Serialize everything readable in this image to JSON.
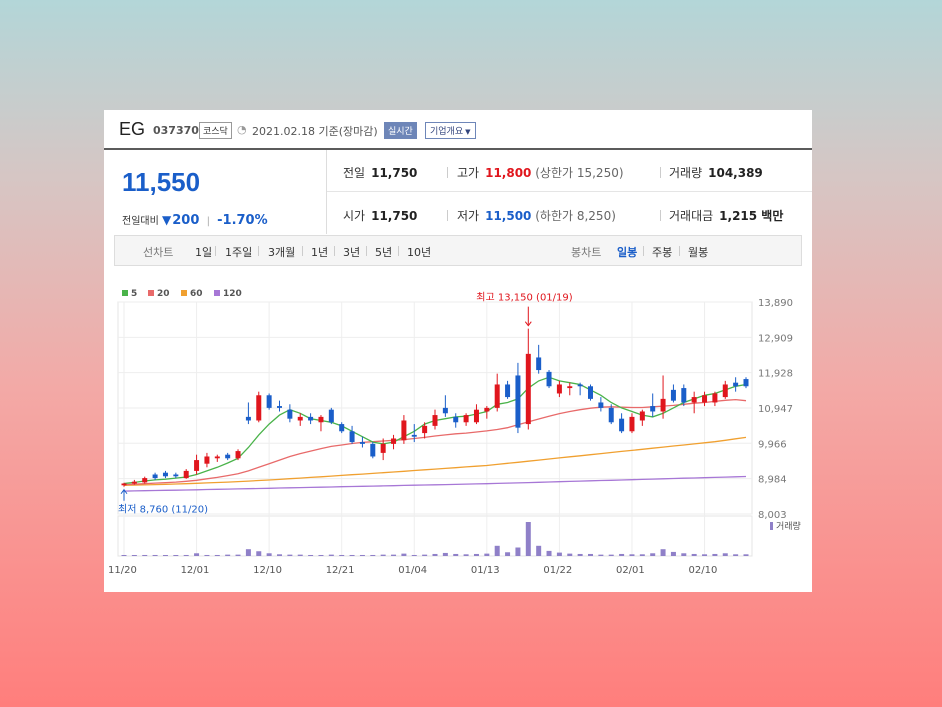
{
  "stock": {
    "name": "EG",
    "code": "037370",
    "market": "코스닥",
    "date_text": "2021.02.18 기준(장마감)",
    "realtime_label": "실시간",
    "company_label": "기업개요",
    "price": "11,550",
    "change_label": "전일대비",
    "change_value": "200",
    "change_pct": "-1.70%"
  },
  "summary": {
    "prev_label": "전일",
    "prev_value": "11,750",
    "high_label": "고가",
    "high_value": "11,800",
    "high_sub": "(상한가 15,250)",
    "volume_label": "거래량",
    "volume_value": "104,389",
    "open_label": "시가",
    "open_value": "11,750",
    "low_label": "저가",
    "low_value": "11,500",
    "low_sub": "(하한가 8,250)",
    "amount_label": "거래대금",
    "amount_value": "1,215 백만"
  },
  "tabs": {
    "line_label": "선차트",
    "line_items": [
      "1일",
      "1주일",
      "3개월",
      "1년",
      "3년",
      "5년",
      "10년"
    ],
    "candle_label": "봉차트",
    "candle_items": [
      "일봉",
      "주봉",
      "월봉"
    ],
    "candle_active": "일봉"
  },
  "colors": {
    "up": "#e0161d",
    "down": "#1a5ec9",
    "ma5": "#4ab34a",
    "ma20": "#e86a6a",
    "ma60": "#f0a030",
    "ma120": "#a777d6",
    "volume": "#8f80c8"
  },
  "chart_data": {
    "type": "candlestick",
    "legend": [
      "5",
      "20",
      "60",
      "120"
    ],
    "y_ticks": [
      "13,890",
      "12,909",
      "11,928",
      "10,947",
      "9,966",
      "8,984",
      "8,003"
    ],
    "ylim": [
      8003,
      13890
    ],
    "x_tick_labels": [
      {
        "i": 0,
        "label": "11/20"
      },
      {
        "i": 7,
        "label": "12/01"
      },
      {
        "i": 14,
        "label": "12/10"
      },
      {
        "i": 21,
        "label": "12/21"
      },
      {
        "i": 28,
        "label": "01/04"
      },
      {
        "i": 35,
        "label": "01/13"
      },
      {
        "i": 42,
        "label": "01/22"
      },
      {
        "i": 49,
        "label": "02/01"
      },
      {
        "i": 56,
        "label": "02/10"
      }
    ],
    "annotations": {
      "high": {
        "text": "최고 13,150 (01/19)",
        "index": 39,
        "value": 13150
      },
      "low": {
        "text": "최저 8,760 (11/20)",
        "index": 0,
        "value": 8760
      }
    },
    "volume_label": "거래량",
    "candles": [
      {
        "o": 8800,
        "h": 8870,
        "l": 8760,
        "c": 8850
      },
      {
        "o": 8850,
        "h": 8950,
        "l": 8820,
        "c": 8900
      },
      {
        "o": 8880,
        "h": 9040,
        "l": 8850,
        "c": 9000
      },
      {
        "o": 9100,
        "h": 9150,
        "l": 8950,
        "c": 9000
      },
      {
        "o": 9150,
        "h": 9200,
        "l": 9000,
        "c": 9050
      },
      {
        "o": 9100,
        "h": 9150,
        "l": 9000,
        "c": 9050
      },
      {
        "o": 9000,
        "h": 9250,
        "l": 8980,
        "c": 9200
      },
      {
        "o": 9200,
        "h": 9650,
        "l": 9100,
        "c": 9500
      },
      {
        "o": 9400,
        "h": 9700,
        "l": 9300,
        "c": 9600
      },
      {
        "o": 9550,
        "h": 9650,
        "l": 9450,
        "c": 9600
      },
      {
        "o": 9650,
        "h": 9700,
        "l": 9500,
        "c": 9550
      },
      {
        "o": 9550,
        "h": 9800,
        "l": 9500,
        "c": 9750
      },
      {
        "o": 10700,
        "h": 11100,
        "l": 10500,
        "c": 10600
      },
      {
        "o": 10600,
        "h": 11400,
        "l": 10550,
        "c": 11300
      },
      {
        "o": 11300,
        "h": 11350,
        "l": 10900,
        "c": 10950
      },
      {
        "o": 11000,
        "h": 11150,
        "l": 10850,
        "c": 10950
      },
      {
        "o": 10900,
        "h": 11050,
        "l": 10550,
        "c": 10650
      },
      {
        "o": 10600,
        "h": 10800,
        "l": 10450,
        "c": 10700
      },
      {
        "o": 10700,
        "h": 10800,
        "l": 10500,
        "c": 10600
      },
      {
        "o": 10550,
        "h": 10750,
        "l": 10300,
        "c": 10700
      },
      {
        "o": 10900,
        "h": 10950,
        "l": 10500,
        "c": 10550
      },
      {
        "o": 10500,
        "h": 10550,
        "l": 10250,
        "c": 10300
      },
      {
        "o": 10300,
        "h": 10450,
        "l": 9950,
        "c": 10000
      },
      {
        "o": 10000,
        "h": 10150,
        "l": 9850,
        "c": 9950
      },
      {
        "o": 9950,
        "h": 10000,
        "l": 9550,
        "c": 9600
      },
      {
        "o": 9700,
        "h": 10100,
        "l": 9500,
        "c": 9950
      },
      {
        "o": 9950,
        "h": 10200,
        "l": 9800,
        "c": 10100
      },
      {
        "o": 10050,
        "h": 10750,
        "l": 9950,
        "c": 10600
      },
      {
        "o": 10200,
        "h": 10500,
        "l": 10000,
        "c": 10150
      },
      {
        "o": 10250,
        "h": 10550,
        "l": 10100,
        "c": 10450
      },
      {
        "o": 10450,
        "h": 10900,
        "l": 10350,
        "c": 10750
      },
      {
        "o": 10950,
        "h": 11300,
        "l": 10700,
        "c": 10800
      },
      {
        "o": 10700,
        "h": 10800,
        "l": 10400,
        "c": 10550
      },
      {
        "o": 10550,
        "h": 10800,
        "l": 10450,
        "c": 10750
      },
      {
        "o": 10550,
        "h": 11050,
        "l": 10500,
        "c": 10900
      },
      {
        "o": 10850,
        "h": 11000,
        "l": 10650,
        "c": 10950
      },
      {
        "o": 10950,
        "h": 11900,
        "l": 10850,
        "c": 11600
      },
      {
        "o": 11600,
        "h": 11700,
        "l": 11200,
        "c": 11250
      },
      {
        "o": 11850,
        "h": 12200,
        "l": 10250,
        "c": 10400
      },
      {
        "o": 10500,
        "h": 13150,
        "l": 10350,
        "c": 12450
      },
      {
        "o": 12350,
        "h": 12700,
        "l": 11900,
        "c": 12000
      },
      {
        "o": 11950,
        "h": 12000,
        "l": 11500,
        "c": 11550
      },
      {
        "o": 11350,
        "h": 11700,
        "l": 11250,
        "c": 11600
      },
      {
        "o": 11500,
        "h": 11650,
        "l": 11300,
        "c": 11550
      },
      {
        "o": 11600,
        "h": 11650,
        "l": 11300,
        "c": 11550
      },
      {
        "o": 11550,
        "h": 11600,
        "l": 11150,
        "c": 11200
      },
      {
        "o": 11100,
        "h": 11250,
        "l": 10850,
        "c": 10950
      },
      {
        "o": 10950,
        "h": 11050,
        "l": 10500,
        "c": 10550
      },
      {
        "o": 10650,
        "h": 10800,
        "l": 10250,
        "c": 10300
      },
      {
        "o": 10300,
        "h": 10800,
        "l": 10250,
        "c": 10700
      },
      {
        "o": 10600,
        "h": 10900,
        "l": 10450,
        "c": 10850
      },
      {
        "o": 11000,
        "h": 11350,
        "l": 10700,
        "c": 10850
      },
      {
        "o": 10850,
        "h": 11850,
        "l": 10650,
        "c": 11200
      },
      {
        "o": 11450,
        "h": 11600,
        "l": 11100,
        "c": 11150
      },
      {
        "o": 11500,
        "h": 11600,
        "l": 11000,
        "c": 11100
      },
      {
        "o": 11100,
        "h": 11400,
        "l": 10800,
        "c": 11250
      },
      {
        "o": 11100,
        "h": 11400,
        "l": 11000,
        "c": 11300
      },
      {
        "o": 11100,
        "h": 11400,
        "l": 11000,
        "c": 11350
      },
      {
        "o": 11250,
        "h": 11700,
        "l": 11200,
        "c": 11600
      },
      {
        "o": 11650,
        "h": 11800,
        "l": 11400,
        "c": 11550
      },
      {
        "o": 11750,
        "h": 11800,
        "l": 11500,
        "c": 11550
      }
    ],
    "ma5": [
      8850,
      8880,
      8920,
      8950,
      8970,
      9000,
      9030,
      9100,
      9200,
      9300,
      9420,
      9550,
      9850,
      10200,
      10500,
      10750,
      10900,
      10800,
      10650,
      10600,
      10550,
      10450,
      10300,
      10150,
      10000,
      9950,
      10000,
      10150,
      10300,
      10500,
      10600,
      10650,
      10700,
      10720,
      10780,
      10850,
      11050,
      11100,
      11200,
      11500,
      11700,
      11800,
      11700,
      11650,
      11600,
      11450,
      11300,
      11100,
      10950,
      10850,
      10750,
      10700,
      10800,
      10950,
      11100,
      11200,
      11300,
      11350,
      11450,
      11550,
      11600
    ],
    "ma20": [
      8820,
      8830,
      8845,
      8860,
      8875,
      8890,
      8910,
      8940,
      8980,
      9020,
      9070,
      9120,
      9200,
      9300,
      9400,
      9500,
      9600,
      9680,
      9750,
      9820,
      9880,
      9920,
      9960,
      9990,
      10010,
      10030,
      10050,
      10070,
      10100,
      10130,
      10170,
      10200,
      10230,
      10250,
      10280,
      10310,
      10350,
      10400,
      10480,
      10560,
      10640,
      10720,
      10790,
      10850,
      10900,
      10940,
      10970,
      10980,
      10970,
      10960,
      10960,
      10980,
      11000,
      11020,
      11050,
      11080,
      11100,
      11130,
      11160,
      11180,
      11150
    ],
    "ma60": [
      8800,
      8805,
      8812,
      8820,
      8828,
      8836,
      8845,
      8855,
      8866,
      8878,
      8890,
      8903,
      8917,
      8932,
      8948,
      8965,
      8982,
      9000,
      9018,
      9036,
      9055,
      9074,
      9093,
      9112,
      9131,
      9150,
      9170,
      9190,
      9210,
      9230,
      9250,
      9270,
      9290,
      9310,
      9330,
      9350,
      9380,
      9410,
      9440,
      9470,
      9500,
      9530,
      9560,
      9590,
      9620,
      9650,
      9680,
      9710,
      9740,
      9770,
      9800,
      9830,
      9860,
      9890,
      9920,
      9950,
      9980,
      10010,
      10050,
      10090,
      10130
    ],
    "ma120": [
      8640,
      8645,
      8650,
      8655,
      8660,
      8665,
      8670,
      8676,
      8682,
      8688,
      8694,
      8700,
      8706,
      8712,
      8718,
      8724,
      8730,
      8736,
      8742,
      8748,
      8754,
      8760,
      8766,
      8772,
      8778,
      8784,
      8790,
      8796,
      8802,
      8808,
      8814,
      8820,
      8826,
      8832,
      8838,
      8844,
      8852,
      8860,
      8868,
      8876,
      8884,
      8892,
      8900,
      8908,
      8916,
      8924,
      8932,
      8940,
      8948,
      8956,
      8964,
      8972,
      8980,
      8988,
      8996,
      9004,
      9012,
      9020,
      9028,
      9036,
      9044
    ],
    "volume": [
      0.02,
      0.02,
      0.03,
      0.03,
      0.02,
      0.02,
      0.03,
      0.08,
      0.03,
      0.03,
      0.04,
      0.04,
      0.2,
      0.14,
      0.08,
      0.05,
      0.04,
      0.04,
      0.03,
      0.03,
      0.04,
      0.03,
      0.03,
      0.03,
      0.03,
      0.04,
      0.04,
      0.07,
      0.03,
      0.04,
      0.06,
      0.09,
      0.06,
      0.05,
      0.06,
      0.07,
      0.3,
      0.11,
      0.25,
      1.0,
      0.3,
      0.15,
      0.1,
      0.07,
      0.06,
      0.06,
      0.04,
      0.04,
      0.06,
      0.05,
      0.05,
      0.08,
      0.2,
      0.12,
      0.08,
      0.06,
      0.05,
      0.06,
      0.08,
      0.05,
      0.05
    ]
  }
}
